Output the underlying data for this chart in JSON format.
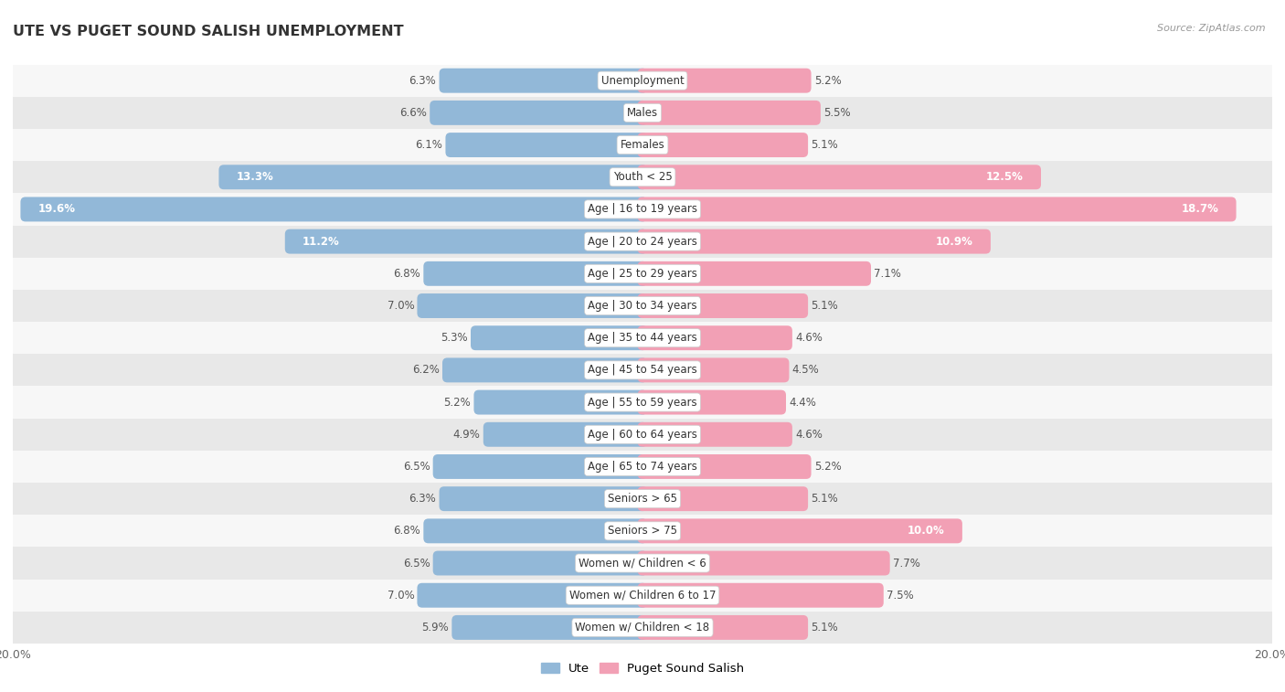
{
  "title": "UTE VS PUGET SOUND SALISH UNEMPLOYMENT",
  "source": "Source: ZipAtlas.com",
  "categories": [
    "Unemployment",
    "Males",
    "Females",
    "Youth < 25",
    "Age | 16 to 19 years",
    "Age | 20 to 24 years",
    "Age | 25 to 29 years",
    "Age | 30 to 34 years",
    "Age | 35 to 44 years",
    "Age | 45 to 54 years",
    "Age | 55 to 59 years",
    "Age | 60 to 64 years",
    "Age | 65 to 74 years",
    "Seniors > 65",
    "Seniors > 75",
    "Women w/ Children < 6",
    "Women w/ Children 6 to 17",
    "Women w/ Children < 18"
  ],
  "ute_values": [
    6.3,
    6.6,
    6.1,
    13.3,
    19.6,
    11.2,
    6.8,
    7.0,
    5.3,
    6.2,
    5.2,
    4.9,
    6.5,
    6.3,
    6.8,
    6.5,
    7.0,
    5.9
  ],
  "pss_values": [
    5.2,
    5.5,
    5.1,
    12.5,
    18.7,
    10.9,
    7.1,
    5.1,
    4.6,
    4.5,
    4.4,
    4.6,
    5.2,
    5.1,
    10.0,
    7.7,
    7.5,
    5.1
  ],
  "ute_color": "#92b8d8",
  "pss_color": "#f2a0b5",
  "max_value": 20.0,
  "bg_color_light": "#e8e8e8",
  "bg_color_white": "#f7f7f7",
  "legend_ute": "Ute",
  "legend_pss": "Puget Sound Salish"
}
